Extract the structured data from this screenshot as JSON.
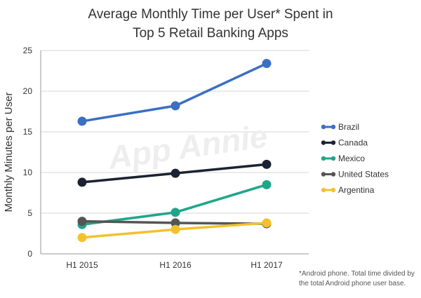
{
  "chart_data": {
    "type": "line",
    "title": "Average Monthly Time per User* Spent in Top 5 Retail Banking Apps",
    "title_lines": [
      "Average Monthly Time per User* Spent in",
      "Top 5 Retail Banking Apps"
    ],
    "xlabel": "",
    "ylabel": "Monthly Minutes per User",
    "categories": [
      "H1 2015",
      "H1 2016",
      "H1 2017"
    ],
    "ylim": [
      0,
      25
    ],
    "yticks": [
      0,
      5,
      10,
      15,
      20,
      25
    ],
    "grid": "horizontal",
    "legend_position": "right",
    "series": [
      {
        "name": "Brazil",
        "color": "#3a6fc4",
        "values": [
          16.3,
          18.2,
          23.4
        ]
      },
      {
        "name": "Canada",
        "color": "#1b2331",
        "values": [
          8.8,
          9.9,
          11.0
        ]
      },
      {
        "name": "Mexico",
        "color": "#1fa68a",
        "values": [
          3.6,
          5.1,
          8.5
        ]
      },
      {
        "name": "United States",
        "color": "#555555",
        "values": [
          4.0,
          3.8,
          3.7
        ]
      },
      {
        "name": "Argentina",
        "color": "#f3c22b",
        "values": [
          2.0,
          3.0,
          3.8
        ]
      }
    ],
    "watermark": "App Annie",
    "footnote_lines": [
      "*Android phone. Total time divided by",
      "the total Android phone user base."
    ]
  }
}
